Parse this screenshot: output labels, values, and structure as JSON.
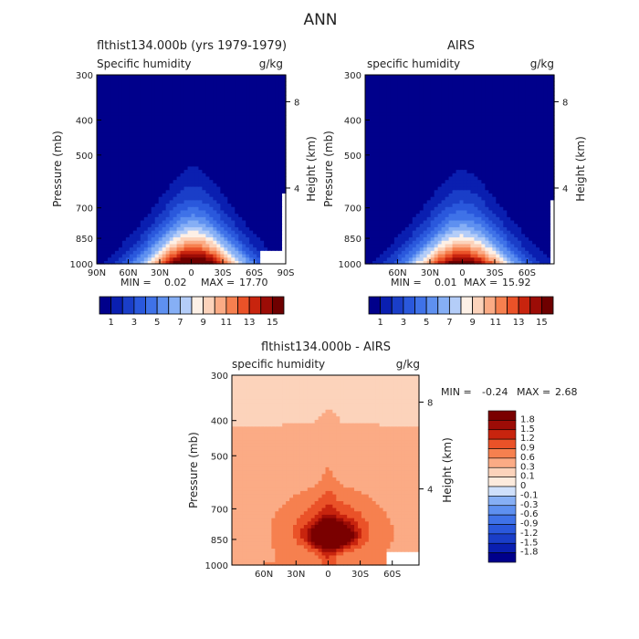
{
  "figure_title": "ANN",
  "chart_data": [
    {
      "type": "heatmap",
      "title": "flthist134.000b (yrs 1979-1979)",
      "variable_label": "Specific humidity",
      "units": "g/kg",
      "xlabel": "",
      "ylabel": "Pressure (mb)",
      "y2label": "Height (km)",
      "x_ticks": [
        "90N",
        "60N",
        "30N",
        "0",
        "30S",
        "60S",
        "90S"
      ],
      "y_ticks": [
        "300",
        "400",
        "500",
        "700",
        "850",
        "1000"
      ],
      "y2_ticks": [
        "8",
        "4"
      ],
      "ylim": [
        1000,
        300
      ],
      "y_scale": "log",
      "min_label": "MIN =",
      "min_value": "0.02",
      "max_label": "MAX =",
      "max_value": "17.70",
      "colorbar_labels": [
        "1",
        "3",
        "5",
        "7",
        "9",
        "11",
        "13",
        "15"
      ],
      "levels": [
        1,
        2,
        3,
        4,
        5,
        6,
        7,
        8,
        9,
        10,
        11,
        12,
        13,
        14,
        15
      ],
      "colors": [
        "#00008b",
        "#0a1fb0",
        "#1a3ec8",
        "#2a58dc",
        "#3f72e8",
        "#5e90f0",
        "#86aff5",
        "#b4cdf8",
        "#fdf0e6",
        "#fcd3bb",
        "#fbab85",
        "#f6804f",
        "#ea5228",
        "#c8240e",
        "#9c0c06",
        "#6e0000"
      ],
      "peak": 17.7,
      "surface_mask": {
        "lat": [
          -67,
          -90
        ],
        "p": [
          915,
          1000
        ]
      },
      "right_mask": {
        "lat": [
          -87,
          -90
        ],
        "p": [
          640,
          1000
        ]
      },
      "lat_range": [
        90,
        -90
      ]
    },
    {
      "type": "heatmap",
      "title": "AIRS",
      "variable_label": "specific humidity",
      "units": "g/kg",
      "xlabel": "",
      "ylabel": "Pressure (mb)",
      "y2label": "Height (km)",
      "x_ticks": [
        "60N",
        "30N",
        "0",
        "30S",
        "60S"
      ],
      "y_ticks": [
        "300",
        "400",
        "500",
        "700",
        "850",
        "1000"
      ],
      "y2_ticks": [
        "8",
        "4"
      ],
      "ylim": [
        1000,
        300
      ],
      "y_scale": "log",
      "min_label": "MIN =",
      "min_value": "0.01",
      "max_label": "MAX =",
      "max_value": "15.92",
      "colorbar_labels": [
        "1",
        "3",
        "5",
        "7",
        "9",
        "11",
        "13",
        "15"
      ],
      "levels": [
        1,
        2,
        3,
        4,
        5,
        6,
        7,
        8,
        9,
        10,
        11,
        12,
        13,
        14,
        15
      ],
      "colors": [
        "#00008b",
        "#0a1fb0",
        "#1a3ec8",
        "#2a58dc",
        "#3f72e8",
        "#5e90f0",
        "#86aff5",
        "#b4cdf8",
        "#fdf0e6",
        "#fcd3bb",
        "#fbab85",
        "#f6804f",
        "#ea5228",
        "#c8240e",
        "#9c0c06",
        "#6e0000"
      ],
      "peak": 15.9,
      "surface_mask": null,
      "right_mask": {
        "lat": [
          -82,
          -85
        ],
        "p": [
          660,
          1000
        ]
      },
      "lat_range": [
        90,
        -85
      ]
    },
    {
      "type": "heatmap",
      "title": "flthist134.000b - AIRS",
      "variable_label": "specific humidity",
      "units": "g/kg",
      "xlabel": "",
      "ylabel": "Pressure (mb)",
      "y2label": "Height (km)",
      "x_ticks": [
        "60N",
        "30N",
        "0",
        "30S",
        "60S"
      ],
      "y_ticks": [
        "300",
        "400",
        "500",
        "700",
        "850",
        "1000"
      ],
      "y2_ticks": [
        "8",
        "4"
      ],
      "ylim": [
        1000,
        300
      ],
      "y_scale": "log",
      "min_label": "MIN =",
      "min_value": "-0.24",
      "max_label": "MAX =",
      "max_value": "2.68",
      "colorbar_labels": [
        "1.8",
        "1.5",
        "1.2",
        "0.9",
        "0.6",
        "0.3",
        "0.1",
        "0",
        "-0.1",
        "-0.3",
        "-0.6",
        "-0.9",
        "-1.2",
        "-1.5",
        "-1.8"
      ],
      "levels": [
        -1.8,
        -1.5,
        -1.2,
        -0.9,
        -0.6,
        -0.3,
        -0.1,
        0,
        0.1,
        0.3,
        0.6,
        0.9,
        1.2,
        1.5,
        1.8
      ],
      "colors": [
        "#00008b",
        "#0a1fb0",
        "#1a3ec8",
        "#2a58dc",
        "#3f72e8",
        "#5e90f0",
        "#86aff5",
        "#cfe0fb",
        "#fdebdd",
        "#fcd3bb",
        "#fbab85",
        "#f6804f",
        "#ea5228",
        "#c8240e",
        "#9c0c06",
        "#7a0000"
      ],
      "surface_mask": {
        "lat": [
          -55,
          -85
        ],
        "p": [
          920,
          1000
        ]
      },
      "right_mask": null,
      "lat_range": [
        90,
        -85
      ]
    }
  ]
}
